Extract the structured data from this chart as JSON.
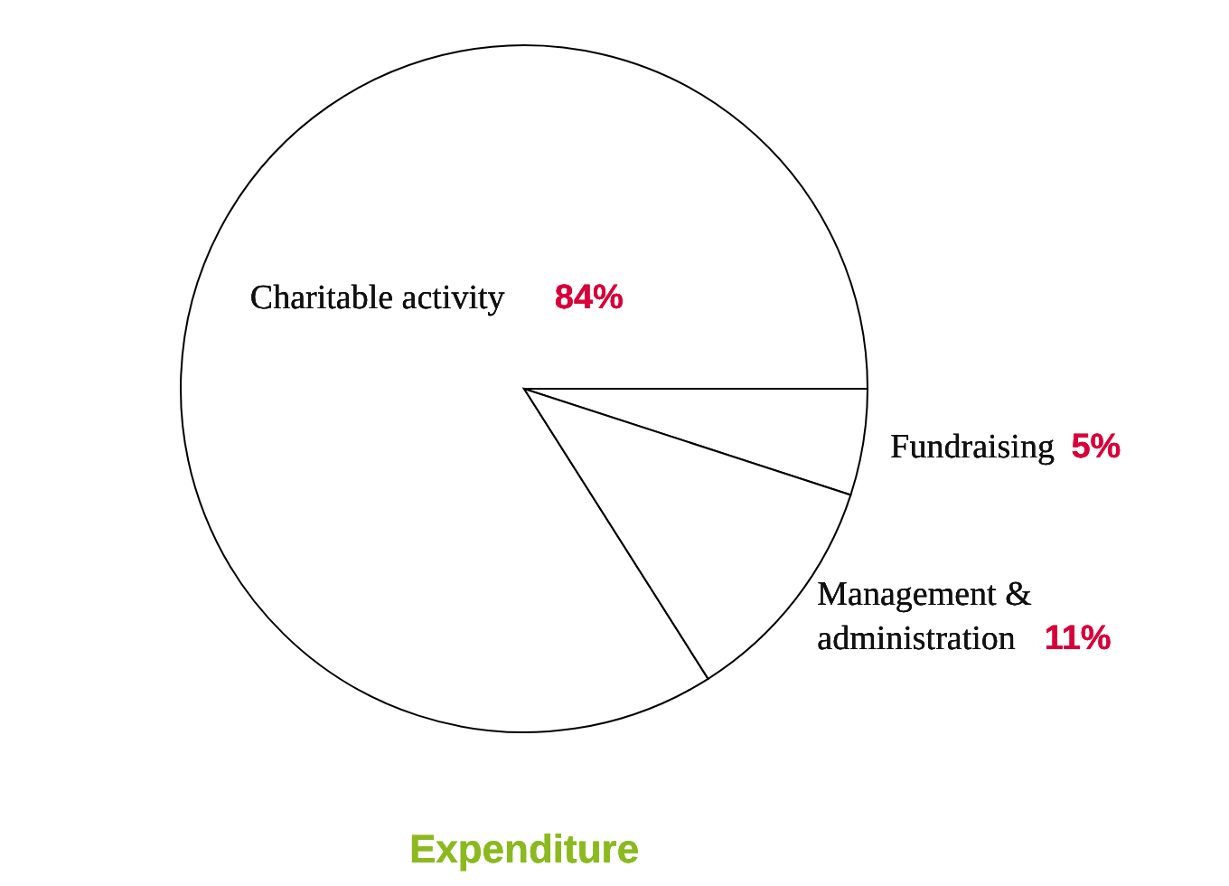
{
  "chart_data": {
    "type": "pie",
    "title": "Expenditure",
    "categories": [
      "Charitable activity",
      "Fundraising",
      "Management & administration"
    ],
    "values": [
      84,
      5,
      11
    ],
    "value_labels": [
      "84%",
      "5%",
      "11%"
    ],
    "colors": [
      "#ffffff",
      "#ffffff",
      "#ffffff"
    ]
  }
}
